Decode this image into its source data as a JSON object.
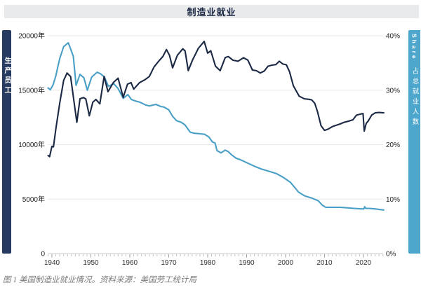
{
  "header": {
    "title": "制造业就业"
  },
  "left_axis_bar": {
    "label": "生产员工"
  },
  "right_axis_bar": {
    "label_en": "Share",
    "label_zh": "占总就业人数"
  },
  "caption": "图 1 美国制造业就业情况。资料来源：美国劳工统计局",
  "colors": {
    "navy_line": "#1b2944",
    "navy_bar": "#273b60",
    "blue_line": "#4a9fc6",
    "blue_bar": "#4da6cb",
    "header_bg": "#e9eaec",
    "grid": "#e8e8e8",
    "axis_line": "#c9c9c9"
  },
  "chart_data": {
    "type": "line",
    "title": "制造业就业",
    "grid": true,
    "x_axis": {
      "range": [
        1939,
        2025.5
      ],
      "ticks": [
        1940,
        1950,
        1960,
        1970,
        1980,
        1990,
        2000,
        2010,
        2020
      ],
      "minor_tick_every_years": 1
    },
    "y_axis_left": {
      "label": "生产员工",
      "range": [
        0,
        20000
      ],
      "tick_values": [
        20000,
        15000,
        10000,
        5000,
        0
      ],
      "tick_labels": [
        "20000年",
        "15000年",
        "10000年",
        "5000年",
        "0"
      ]
    },
    "y_axis_right": {
      "label": "占总就业人数 (Share)",
      "range": [
        0,
        40
      ],
      "tick_values": [
        40,
        30,
        20,
        10,
        0
      ],
      "tick_labels": [
        "40%",
        "30%",
        "20%",
        "10%",
        "0%"
      ]
    },
    "legend_position": "none",
    "series": [
      {
        "name": "占总就业人数",
        "axis": "right",
        "unit": "%",
        "color": "#4a9fc6",
        "points": [
          [
            1939,
            30.4
          ],
          [
            1939.6,
            30.1
          ],
          [
            1940.3,
            31.0
          ],
          [
            1941,
            32.6
          ],
          [
            1942,
            35.8
          ],
          [
            1943,
            38.0
          ],
          [
            1944.2,
            38.7
          ],
          [
            1944.8,
            37.6
          ],
          [
            1945.5,
            36.2
          ],
          [
            1946.2,
            30.9
          ],
          [
            1947.2,
            32.9
          ],
          [
            1948.2,
            32.3
          ],
          [
            1949.1,
            30.0
          ],
          [
            1950.2,
            32.4
          ],
          [
            1951.6,
            33.3
          ],
          [
            1952.5,
            33.0
          ],
          [
            1953.5,
            32.4
          ],
          [
            1954.5,
            30.7
          ],
          [
            1955.9,
            31.2
          ],
          [
            1957,
            30.3
          ],
          [
            1958.3,
            28.5
          ],
          [
            1959.5,
            29.2
          ],
          [
            1960.4,
            28.3
          ],
          [
            1961.5,
            28.0
          ],
          [
            1962.6,
            27.8
          ],
          [
            1964,
            27.3
          ],
          [
            1965,
            27.1
          ],
          [
            1966.7,
            27.4
          ],
          [
            1968,
            27.0
          ],
          [
            1968.8,
            26.9
          ],
          [
            1970,
            26.4
          ],
          [
            1971,
            25.2
          ],
          [
            1972,
            24.4
          ],
          [
            1973.2,
            24.1
          ],
          [
            1974.2,
            23.6
          ],
          [
            1975.5,
            22.3
          ],
          [
            1976.5,
            22.1
          ],
          [
            1978,
            22.0
          ],
          [
            1979.2,
            21.9
          ],
          [
            1980.3,
            21.4
          ],
          [
            1981.2,
            20.5
          ],
          [
            1981.9,
            20.3
          ],
          [
            1982.4,
            18.9
          ],
          [
            1983.4,
            18.5
          ],
          [
            1984.5,
            19.0
          ],
          [
            1985.3,
            18.7
          ],
          [
            1986.2,
            18.1
          ],
          [
            1987.3,
            17.5
          ],
          [
            1988.5,
            17.2
          ],
          [
            1990.3,
            16.6
          ],
          [
            1992.1,
            16.0
          ],
          [
            1993.9,
            15.5
          ],
          [
            1995.8,
            15.1
          ],
          [
            1997.6,
            14.7
          ],
          [
            1999.4,
            14.0
          ],
          [
            2001.2,
            13.1
          ],
          [
            2002.4,
            12.1
          ],
          [
            2003.3,
            11.3
          ],
          [
            2004.9,
            10.6
          ],
          [
            2006.7,
            10.2
          ],
          [
            2008.4,
            9.7
          ],
          [
            2009.4,
            8.9
          ],
          [
            2010.3,
            8.5
          ],
          [
            2012,
            8.5
          ],
          [
            2014,
            8.5
          ],
          [
            2015.8,
            8.4
          ],
          [
            2017.6,
            8.3
          ],
          [
            2019.4,
            8.2
          ],
          [
            2020.1,
            8.2
          ],
          [
            2020.3,
            8.6
          ],
          [
            2020.6,
            8.3
          ],
          [
            2021.5,
            8.3
          ],
          [
            2023,
            8.2
          ],
          [
            2024.6,
            8.05
          ],
          [
            2025.2,
            8.0
          ]
        ]
      },
      {
        "name": "生产员工",
        "axis": "left",
        "unit": "thousands",
        "color": "#1b2944",
        "points": [
          [
            1939,
            9000
          ],
          [
            1939.4,
            8900
          ],
          [
            1940,
            9850
          ],
          [
            1940.4,
            9800
          ],
          [
            1941,
            11400
          ],
          [
            1942,
            13800
          ],
          [
            1943,
            15900
          ],
          [
            1943.9,
            16580
          ],
          [
            1944.8,
            16260
          ],
          [
            1946.4,
            12050
          ],
          [
            1947.2,
            14210
          ],
          [
            1948.1,
            14320
          ],
          [
            1948.7,
            14200
          ],
          [
            1949.6,
            12650
          ],
          [
            1950.5,
            13900
          ],
          [
            1951.3,
            14150
          ],
          [
            1952.3,
            13750
          ],
          [
            1953.4,
            16260
          ],
          [
            1954.4,
            14860
          ],
          [
            1955.8,
            15720
          ],
          [
            1957,
            16100
          ],
          [
            1958.3,
            14350
          ],
          [
            1959.4,
            15550
          ],
          [
            1960.3,
            15700
          ],
          [
            1961,
            15100
          ],
          [
            1962.5,
            15700
          ],
          [
            1963.8,
            15940
          ],
          [
            1965,
            16260
          ],
          [
            1966.2,
            17120
          ],
          [
            1967.4,
            17660
          ],
          [
            1968.5,
            18100
          ],
          [
            1969.4,
            18730
          ],
          [
            1970.2,
            18200
          ],
          [
            1971,
            17050
          ],
          [
            1972.2,
            18190
          ],
          [
            1973.6,
            18800
          ],
          [
            1974.2,
            18600
          ],
          [
            1975,
            16800
          ],
          [
            1976.1,
            17770
          ],
          [
            1977.6,
            18840
          ],
          [
            1979.1,
            19480
          ],
          [
            1980,
            18400
          ],
          [
            1980.8,
            18620
          ],
          [
            1982,
            17200
          ],
          [
            1983.2,
            16790
          ],
          [
            1984.5,
            18000
          ],
          [
            1985.3,
            18090
          ],
          [
            1986.5,
            17750
          ],
          [
            1987.8,
            17660
          ],
          [
            1989.2,
            17980
          ],
          [
            1990.3,
            17760
          ],
          [
            1991.5,
            16850
          ],
          [
            1992.5,
            16790
          ],
          [
            1993.5,
            16580
          ],
          [
            1994.5,
            16750
          ],
          [
            1995.5,
            17200
          ],
          [
            1996.5,
            17300
          ],
          [
            1997.5,
            17350
          ],
          [
            1998.4,
            17660
          ],
          [
            1999.3,
            17400
          ],
          [
            2000.2,
            17330
          ],
          [
            2001,
            16700
          ],
          [
            2002,
            15400
          ],
          [
            2003.5,
            14450
          ],
          [
            2004.8,
            14210
          ],
          [
            2006,
            14160
          ],
          [
            2006.7,
            14110
          ],
          [
            2007.5,
            13800
          ],
          [
            2008.2,
            13030
          ],
          [
            2009.1,
            11740
          ],
          [
            2010,
            11310
          ],
          [
            2010.9,
            11420
          ],
          [
            2012,
            11650
          ],
          [
            2012.7,
            11740
          ],
          [
            2014,
            11900
          ],
          [
            2015,
            12050
          ],
          [
            2016.3,
            12170
          ],
          [
            2017.3,
            12280
          ],
          [
            2018.2,
            12710
          ],
          [
            2019.4,
            12820
          ],
          [
            2019.9,
            12850
          ],
          [
            2020.2,
            11250
          ],
          [
            2020.7,
            11950
          ],
          [
            2021.2,
            12170
          ],
          [
            2022.1,
            12710
          ],
          [
            2023,
            12920
          ],
          [
            2024,
            12950
          ],
          [
            2025.2,
            12920
          ]
        ]
      }
    ]
  }
}
